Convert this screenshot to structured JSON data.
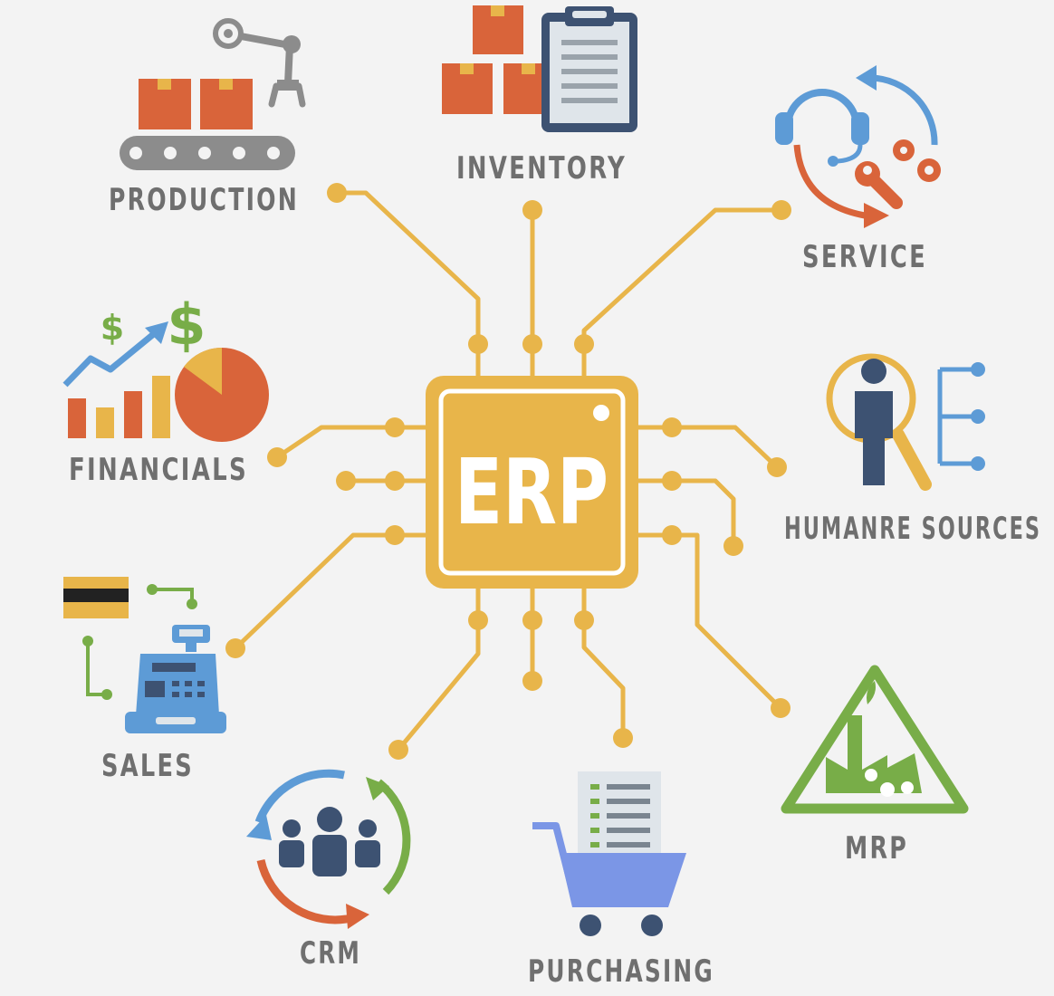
{
  "center": {
    "label": "ERP"
  },
  "modules": [
    {
      "id": "production",
      "label": "PRODUCTION",
      "icon": "conveyor-robot-arm-icon"
    },
    {
      "id": "inventory",
      "label": "INVENTORY",
      "icon": "boxes-clipboard-icon"
    },
    {
      "id": "service",
      "label": "SERVICE",
      "icon": "headset-tools-icon"
    },
    {
      "id": "financials",
      "label": "FINANCIALS",
      "icon": "chart-dollar-icon"
    },
    {
      "id": "human-resources",
      "label": "HUMANRE SOURCES",
      "icon": "person-magnifier-icon"
    },
    {
      "id": "sales",
      "label": "SALES",
      "icon": "cash-register-card-icon"
    },
    {
      "id": "mrp",
      "label": "MRP",
      "icon": "factory-triangle-icon"
    },
    {
      "id": "crm",
      "label": "CRM",
      "icon": "people-cycle-icon"
    },
    {
      "id": "purchasing",
      "label": "PURCHASING",
      "icon": "shopping-cart-list-icon"
    }
  ],
  "colors": {
    "background": "#f3f3f3",
    "chip": "#e8b54a",
    "trace": "#e8b54a",
    "label": "#6f6f6f",
    "orange": "#d9643a",
    "blue": "#5d9bd6",
    "navy": "#3d5272",
    "green": "#78ad48",
    "gray": "#8c8c8c"
  }
}
